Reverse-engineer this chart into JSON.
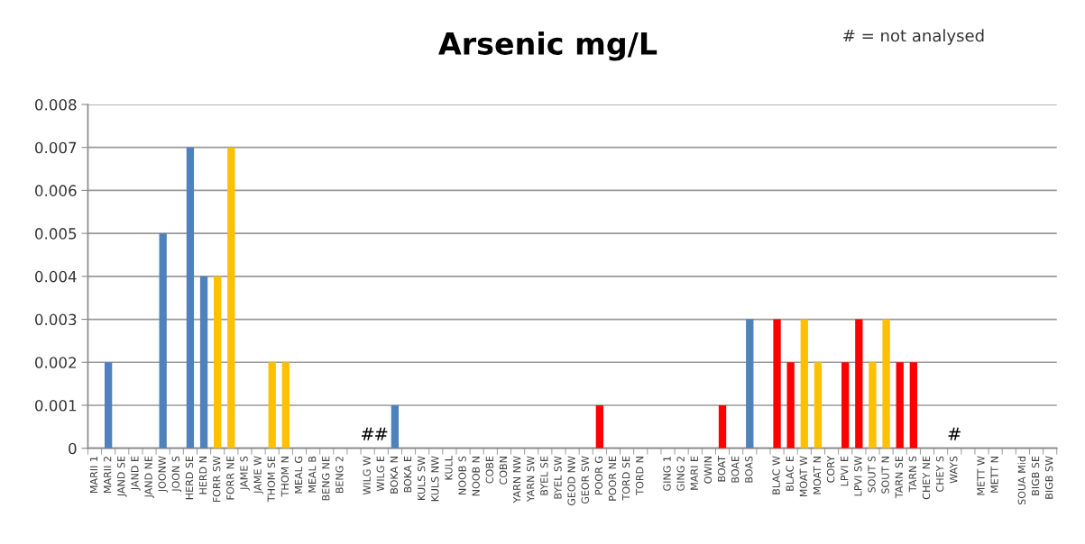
{
  "chart_data": {
    "type": "bar",
    "title": "Arsenic mg/L",
    "categories": [
      "MARII 1",
      "MARII 2",
      "JAND SE",
      "JAND E",
      "JAND NE",
      "JOONW",
      "JOON S",
      "HERD SE",
      "HERD N",
      "FORR SW",
      "FORR NE",
      "JAME S",
      "JAME W",
      "THOM SE",
      "THOM N",
      "MEAL G",
      "MEAL B",
      "BENG NE",
      "BENG 2",
      null,
      "WILG W",
      "WILG E",
      "BOKA N",
      "BOKA E",
      "KULS SW",
      "KULS NW",
      "KULL",
      "NOOB S",
      "NOOB N",
      "COBE",
      "COBN",
      "YARN NW",
      "YARN SW",
      "BYEL SE",
      "BYEL SW",
      "GEOD NW",
      "GEOR SW",
      "POOR G",
      "POOR NE",
      "TORD SE",
      "TORD N",
      null,
      "GING 1",
      "GING 2",
      "MARI E",
      "OWIN",
      "BOAT",
      "BOAE",
      "BOAS",
      null,
      "BLAC W",
      "BLAC E",
      "MOAT W",
      "MOAT N",
      "CORY",
      "LPVI E",
      "LPVI SW",
      "SOUT S",
      "SOUT N",
      "TARN SE",
      "TARN S",
      "CHEY NE",
      "CHEY S",
      "WAYS",
      null,
      "METT W",
      "METT N",
      null,
      "SOUA Mid",
      "BIGB SE",
      "BIGB SW"
    ],
    "values": [
      0,
      0.002,
      0,
      0,
      0,
      0.005,
      0,
      0.007,
      0.004,
      0.004,
      0.007,
      0,
      0,
      0.002,
      0.002,
      0,
      0,
      0,
      0,
      null,
      null,
      null,
      0.001,
      0,
      0,
      0,
      0,
      0,
      0,
      0,
      0,
      0,
      0,
      0,
      0,
      0,
      0,
      0.001,
      0,
      0,
      0,
      null,
      0,
      0,
      0,
      0,
      0.001,
      0,
      0.003,
      null,
      0.003,
      0.002,
      0.003,
      0.002,
      0,
      0.002,
      0.003,
      0.002,
      0.003,
      0.002,
      0.002,
      0,
      0,
      null,
      null,
      0,
      0,
      null,
      0,
      0,
      0
    ],
    "colors": [
      "#4f81bd",
      "#4f81bd",
      "#4f81bd",
      "#4f81bd",
      "#4f81bd",
      "#4f81bd",
      "#4f81bd",
      "#4f81bd",
      "#4f81bd",
      "#ffc000",
      "#ffc000",
      "#ffc000",
      "#ffc000",
      "#ffc000",
      "#ffc000",
      "#ffc000",
      "#ffc000",
      "#ffc000",
      "#ffc000",
      "#4f81bd",
      "#4f81bd",
      "#4f81bd",
      "#4f81bd",
      "#4f81bd",
      "#4f81bd",
      "#4f81bd",
      "#4f81bd",
      "#4f81bd",
      "#4f81bd",
      "#4f81bd",
      "#4f81bd",
      "#4f81bd",
      "#4f81bd",
      "#4f81bd",
      "#4f81bd",
      "#4f81bd",
      "#4f81bd",
      "#ff0000",
      "#ff0000",
      "#ff0000",
      "#ff0000",
      "#ff0000",
      "#ff0000",
      "#ff0000",
      "#ff0000",
      "#ff0000",
      "#ff0000",
      "#4f81bd",
      "#4f81bd",
      "#ff0000",
      "#ff0000",
      "#ff0000",
      "#ffc000",
      "#ffc000",
      "#ff0000",
      "#ff0000",
      "#ff0000",
      "#ffc000",
      "#ffc000",
      "#ff0000",
      "#ff0000",
      "#ff0000",
      "#ff0000",
      "#ff0000",
      "#ff0000",
      "#ff0000",
      "#ff0000",
      "#ff0000",
      "#ff0000",
      "#ff0000",
      "#ff0000"
    ],
    "ylim": [
      0,
      0.008
    ],
    "yticks": [
      {
        "value": 0,
        "label": "0"
      },
      {
        "value": 0.001,
        "label": "0.001"
      },
      {
        "value": 0.002,
        "label": "0.002"
      },
      {
        "value": 0.003,
        "label": "0.003"
      },
      {
        "value": 0.004,
        "label": "0.004"
      },
      {
        "value": 0.005,
        "label": "0.005"
      },
      {
        "value": 0.006,
        "label": "0.006"
      },
      {
        "value": 0.007,
        "label": "0.007"
      },
      {
        "value": 0.008,
        "label": "0.008"
      }
    ],
    "grid": "y",
    "annotations": [
      "# = not analysed",
      "#",
      "#",
      "#"
    ]
  }
}
